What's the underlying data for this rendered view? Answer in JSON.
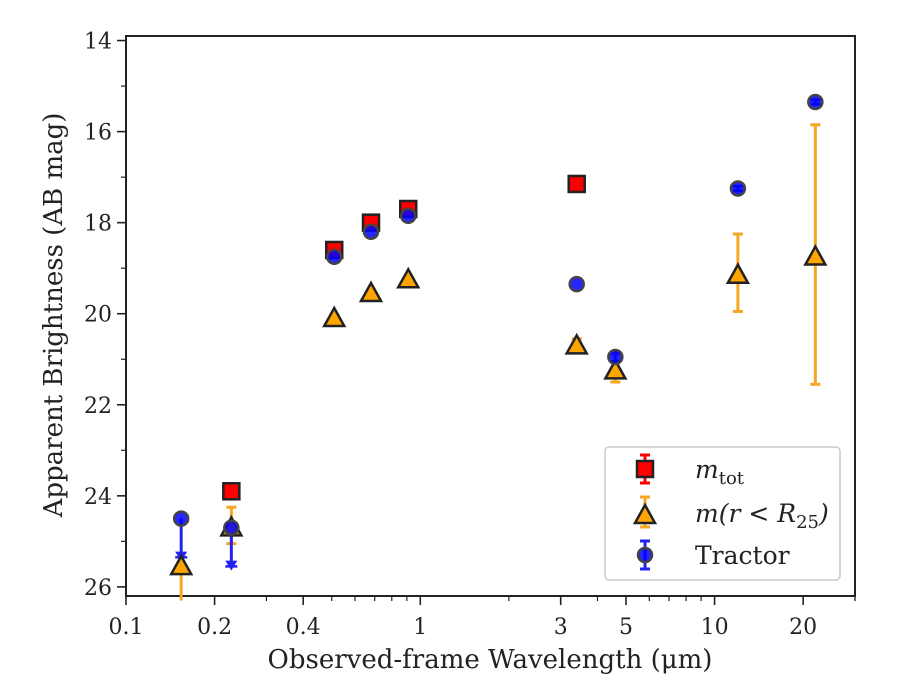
{
  "chart_data": {
    "type": "scatter",
    "xlabel": "Observed-frame Wavelength (μm)",
    "ylabel": "Apparent Brightness (AB mag)",
    "xscale": "log",
    "xlim": [
      0.1,
      30
    ],
    "ylim": [
      26.2,
      13.9
    ],
    "y_inverted": true,
    "x_ticks": [
      0.1,
      0.2,
      0.4,
      1,
      3,
      5,
      10,
      20
    ],
    "x_tick_labels": [
      "0.1",
      "0.2",
      "0.4",
      "1",
      "3",
      "5",
      "10",
      "20"
    ],
    "y_ticks": [
      14,
      16,
      18,
      20,
      22,
      24,
      26
    ],
    "y_tick_labels": [
      "14",
      "16",
      "18",
      "20",
      "22",
      "24",
      "26"
    ],
    "grid": false,
    "legend_placement": "bottom-right",
    "colors": {
      "m_tot": "#ff0000",
      "m_r25": "#ffa500",
      "m_r25_err": "#f5a623",
      "tractor": "#0000ff",
      "tractor_err": "#2222ee",
      "edge": "#222222"
    },
    "series": [
      {
        "name": "m_tot",
        "legend_label_main": "m",
        "legend_label_sub": "tot",
        "marker": "square",
        "points": [
          {
            "x": 0.228,
            "y": 23.9,
            "err": 0
          },
          {
            "x": 0.51,
            "y": 18.6,
            "err": 0.1
          },
          {
            "x": 0.68,
            "y": 18.0,
            "err": 0.1
          },
          {
            "x": 0.91,
            "y": 17.7,
            "err": 0.1
          },
          {
            "x": 3.4,
            "y": 17.15,
            "err": 0
          }
        ]
      },
      {
        "name": "m(r<R25)",
        "legend_label_main": "m(r < R",
        "legend_label_sub": "25",
        "legend_label_end": ")",
        "marker": "triangle",
        "points": [
          {
            "x": 0.154,
            "y": 25.5,
            "err_lo": 0.8,
            "err_hi": 0
          },
          {
            "x": 0.228,
            "y": 24.65,
            "err_lo": 0.4,
            "err_hi": 0.4
          },
          {
            "x": 0.51,
            "y": 20.05,
            "err": 0
          },
          {
            "x": 0.68,
            "y": 19.5,
            "err": 0
          },
          {
            "x": 0.91,
            "y": 19.2,
            "err": 0
          },
          {
            "x": 3.4,
            "y": 20.65,
            "err": 0.1
          },
          {
            "x": 4.6,
            "y": 21.2,
            "err": 0.3
          },
          {
            "x": 12.0,
            "y": 19.1,
            "err": 0.85
          },
          {
            "x": 22.0,
            "y": 18.7,
            "err": 2.85
          }
        ]
      },
      {
        "name": "Tractor",
        "legend_label_main": "Tractor",
        "marker": "circle",
        "points": [
          {
            "x": 0.154,
            "y": 24.5,
            "upper_limit": true,
            "arrow_to": 25.4
          },
          {
            "x": 0.228,
            "y": 24.7,
            "upper_limit": true,
            "arrow_to": 25.6
          },
          {
            "x": 0.51,
            "y": 18.75,
            "err": 0
          },
          {
            "x": 0.68,
            "y": 18.2,
            "err": 0
          },
          {
            "x": 0.91,
            "y": 17.85,
            "err": 0
          },
          {
            "x": 3.4,
            "y": 19.35,
            "err": 0
          },
          {
            "x": 4.6,
            "y": 20.95,
            "err": 0.1
          },
          {
            "x": 12.0,
            "y": 17.25,
            "err": 0.05
          },
          {
            "x": 22.0,
            "y": 15.35,
            "err": 0.05
          }
        ]
      }
    ]
  }
}
